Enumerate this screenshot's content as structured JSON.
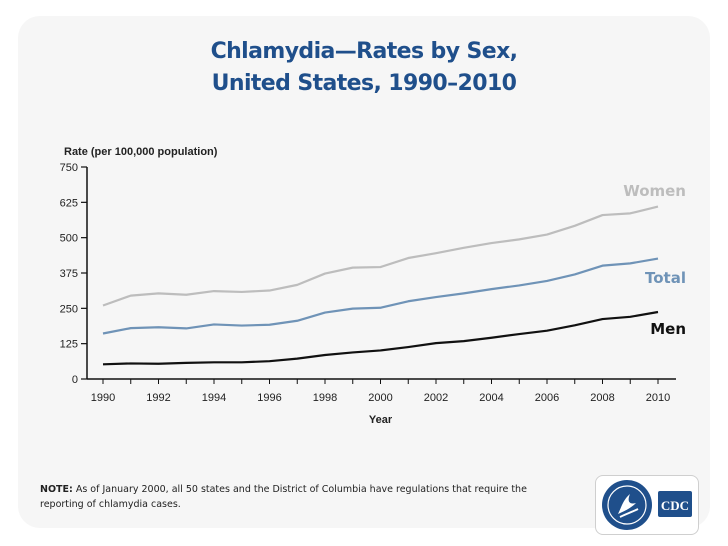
{
  "slide": {
    "title_line1": "Chlamydia—Rates by Sex,",
    "title_line2": "United States, 1990–2010",
    "note_label": "NOTE:",
    "note_text": " As of January 2000, all 50 states and the District of Columbia have regulations that require the reporting of chlamydia cases.",
    "logo_text": "CDC"
  },
  "chart_data": {
    "type": "line",
    "title": "Chlamydia—Rates by Sex, United States, 1990–2010",
    "xlabel": "Year",
    "ylabel": "Rate (per 100,000 population)",
    "x": [
      1990,
      1991,
      1992,
      1993,
      1994,
      1995,
      1996,
      1997,
      1998,
      1999,
      2000,
      2001,
      2002,
      2003,
      2004,
      2005,
      2006,
      2007,
      2008,
      2009,
      2010
    ],
    "x_tick_labels": [
      "1990",
      "1992",
      "1994",
      "1996",
      "1998",
      "2000",
      "2002",
      "2004",
      "2006",
      "2008",
      "2010"
    ],
    "x_ticks": [
      1990,
      1992,
      1994,
      1996,
      1998,
      2000,
      2002,
      2004,
      2006,
      2008,
      2010
    ],
    "y_ticks": [
      0,
      125,
      250,
      375,
      500,
      625,
      750
    ],
    "y_tick_labels": [
      "0",
      "125",
      "250",
      "375",
      "500",
      "625",
      "750"
    ],
    "xlim": [
      1990,
      2010
    ],
    "ylim": [
      0,
      750
    ],
    "grid": false,
    "legend": "inline labels at line ends",
    "series": [
      {
        "name": "Women",
        "color": "#bdbdbd",
        "values": [
          260,
          295,
          303,
          298,
          311,
          308,
          313,
          333,
          373,
          394,
          396,
          428,
          445,
          464,
          481,
          494,
          511,
          542,
          580,
          586,
          610
        ]
      },
      {
        "name": "Total",
        "color": "#6f93b7",
        "values": [
          161,
          180,
          183,
          179,
          193,
          189,
          192,
          206,
          235,
          249,
          252,
          275,
          290,
          303,
          318,
          331,
          347,
          370,
          401,
          409,
          426
        ]
      },
      {
        "name": "Men",
        "color": "#111111",
        "values": [
          52,
          55,
          54,
          57,
          59,
          59,
          63,
          72,
          85,
          94,
          101,
          113,
          127,
          134,
          146,
          159,
          171,
          190,
          212,
          220,
          237
        ]
      }
    ]
  }
}
